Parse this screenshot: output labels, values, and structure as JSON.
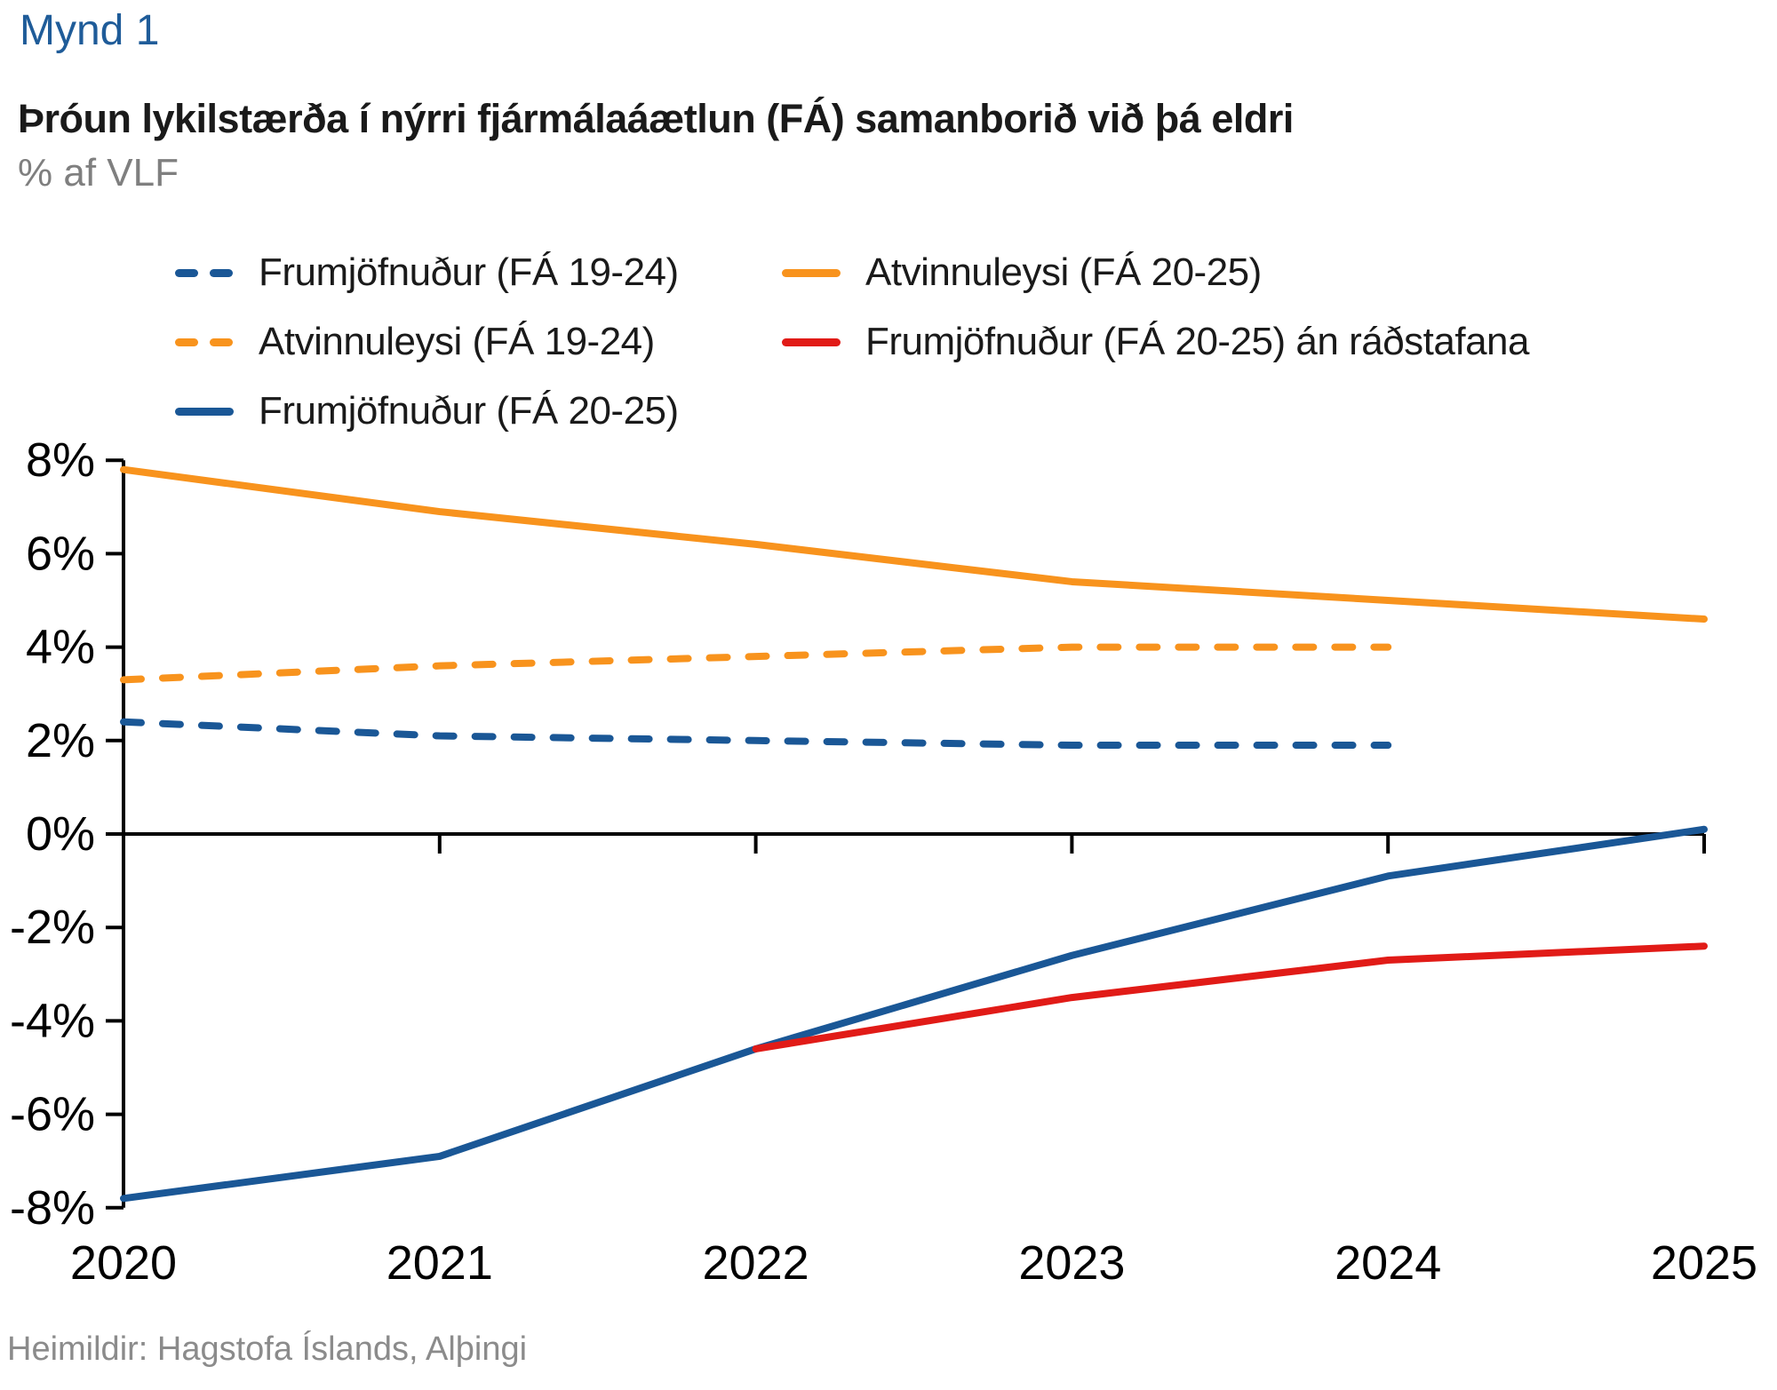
{
  "page": {
    "figure_label": "Mynd 1",
    "title": "Þróun lykilstærða í nýrri fjármálaáætlun (FÁ) samanborið við þá eldri",
    "subtitle": "% af VLF",
    "source": "Heimildir: Hagstofa Íslands, Alþingi"
  },
  "colors": {
    "blue": "#1A5796",
    "orange": "#F8931D",
    "red": "#E11B17",
    "title_blue": "#1F5C99",
    "gray": "#7f7f7f",
    "axis": "#000000"
  },
  "legend": [
    {
      "label": "Frumjöfnuður (FÁ 19-24)",
      "color": "blue",
      "dashed": true
    },
    {
      "label": "Atvinnuleysi (FÁ 20-25)",
      "color": "orange",
      "dashed": false
    },
    {
      "label": "Atvinnuleysi (FÁ 19-24)",
      "color": "orange",
      "dashed": true
    },
    {
      "label": "Frumjöfnuður (FÁ 20-25) án ráðstafana",
      "color": "red",
      "dashed": false
    },
    {
      "label": "Frumjöfnuður (FÁ 20-25)",
      "color": "blue",
      "dashed": false
    }
  ],
  "chart_data": {
    "type": "line",
    "title": "Þróun lykilstærða í nýrri fjármálaáætlun (FÁ) samanborið við þá eldri",
    "ylabel": "% af VLF",
    "xlabel": "",
    "x": [
      2020,
      2021,
      2022,
      2023,
      2024,
      2025
    ],
    "xtick_labels": [
      "2020",
      "2021",
      "2022",
      "2023",
      "2024",
      "2025"
    ],
    "ylim": [
      -8,
      8
    ],
    "ytick_step": 2,
    "ytick_labels": [
      "-8%",
      "-6%",
      "-4%",
      "-2%",
      "0%",
      "2%",
      "4%",
      "6%",
      "8%"
    ],
    "grid": false,
    "legend_position": "top",
    "series": [
      {
        "name": "Frumjöfnuður (FÁ 19-24)",
        "color": "blue",
        "dashed": true,
        "values": [
          2.4,
          2.1,
          2.0,
          1.9,
          1.9,
          null
        ]
      },
      {
        "name": "Atvinnuleysi (FÁ 19-24)",
        "color": "orange",
        "dashed": true,
        "values": [
          3.3,
          3.6,
          3.8,
          4.0,
          4.0,
          null
        ]
      },
      {
        "name": "Atvinnuleysi (FÁ 20-25)",
        "color": "orange",
        "dashed": false,
        "values": [
          7.8,
          6.9,
          6.2,
          5.4,
          5.0,
          4.6
        ]
      },
      {
        "name": "Frumjöfnuður (FÁ 20-25)",
        "color": "blue",
        "dashed": false,
        "values": [
          -7.8,
          -6.9,
          -4.6,
          -2.6,
          -0.9,
          0.1
        ]
      },
      {
        "name": "Frumjöfnuður (FÁ 20-25) án ráðstafana",
        "color": "red",
        "dashed": false,
        "values": [
          null,
          null,
          -4.6,
          -3.5,
          -2.7,
          -2.4
        ]
      }
    ]
  }
}
